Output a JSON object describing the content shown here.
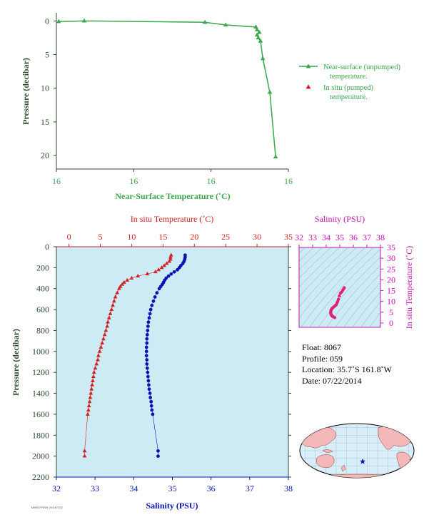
{
  "colors": {
    "green": "#3aa84b",
    "red": "#d42020",
    "blue": "#0a14b4",
    "magenta": "#cc10b4",
    "panel_bg": "#cdebf5",
    "ocean": "#d8eef8",
    "land": "#f4b8b8",
    "axis_dark": "#2e4a2e"
  },
  "chart_data": [
    {
      "type": "line",
      "name": "near-surface",
      "xlabel": "Near-Surface Temperature (˚C)",
      "ylabel": "Pressure (decibar)",
      "x_tick_labels": [
        "16",
        "16",
        "16",
        "16"
      ],
      "y_ticks": [
        0,
        5,
        10,
        15,
        20
      ],
      "x_domain": [
        0,
        1
      ],
      "ylim": [
        -1.2,
        22
      ],
      "y_inverted": true,
      "legend": [
        {
          "label_lines": [
            "Near-surface (unpumped)",
            "temperature."
          ],
          "color": "#3aa84b",
          "marker": "line-triangle"
        },
        {
          "label_lines": [
            "In situ (pumped)",
            "temperature."
          ],
          "color": "#d42020",
          "marker": "triangle"
        }
      ],
      "series": [
        {
          "color": "#3aa84b",
          "points": [
            {
              "t": 0.01,
              "p": 0.1
            },
            {
              "t": 0.12,
              "p": 0.0
            },
            {
              "t": 0.64,
              "p": 0.2
            },
            {
              "t": 0.73,
              "p": 0.6
            },
            {
              "t": 0.86,
              "p": 0.9
            },
            {
              "t": 0.865,
              "p": 1.3
            },
            {
              "t": 0.875,
              "p": 1.7
            },
            {
              "t": 0.865,
              "p": 2.1
            },
            {
              "t": 0.87,
              "p": 2.5
            },
            {
              "t": 0.88,
              "p": 3.0
            },
            {
              "t": 0.89,
              "p": 5.6
            },
            {
              "t": 0.92,
              "p": 10.6
            },
            {
              "t": 0.945,
              "p": 20.2
            }
          ]
        }
      ]
    },
    {
      "type": "scatter",
      "name": "profile",
      "ylabel": "Pressure (decibar)",
      "top_xlabel": "In situ Temperature (˚C)",
      "bottom_xlabel": "Salinity (PSU)",
      "temperature_range": [
        -2,
        35
      ],
      "temperature_ticks": [
        0,
        5,
        10,
        15,
        20,
        25,
        30,
        35
      ],
      "salinity_range": [
        32,
        38
      ],
      "salinity_ticks": [
        32,
        33,
        34,
        35,
        36,
        37,
        38
      ],
      "pressure_range": [
        0,
        2200
      ],
      "pressure_ticks": [
        0,
        200,
        400,
        600,
        800,
        1000,
        1200,
        1400,
        1600,
        1800,
        2000,
        2200
      ],
      "y_inverted": true,
      "series": [
        {
          "name": "temperature",
          "color": "#d42020",
          "marker": "triangle",
          "points": [
            {
              "x": 16.3,
              "p": 80
            },
            {
              "x": 16.2,
              "p": 100
            },
            {
              "x": 16.2,
              "p": 120
            },
            {
              "x": 16.0,
              "p": 140
            },
            {
              "x": 15.6,
              "p": 160
            },
            {
              "x": 15.2,
              "p": 180
            },
            {
              "x": 14.8,
              "p": 200
            },
            {
              "x": 14.3,
              "p": 220
            },
            {
              "x": 13.8,
              "p": 240
            },
            {
              "x": 12.5,
              "p": 260
            },
            {
              "x": 11.0,
              "p": 280
            },
            {
              "x": 10.0,
              "p": 300
            },
            {
              "x": 9.3,
              "p": 320
            },
            {
              "x": 8.8,
              "p": 340
            },
            {
              "x": 8.5,
              "p": 360
            },
            {
              "x": 8.2,
              "p": 380
            },
            {
              "x": 8.0,
              "p": 400
            },
            {
              "x": 7.7,
              "p": 440
            },
            {
              "x": 7.4,
              "p": 480
            },
            {
              "x": 7.2,
              "p": 520
            },
            {
              "x": 7.0,
              "p": 560
            },
            {
              "x": 6.8,
              "p": 600
            },
            {
              "x": 6.6,
              "p": 640
            },
            {
              "x": 6.4,
              "p": 680
            },
            {
              "x": 6.2,
              "p": 720
            },
            {
              "x": 6.1,
              "p": 760
            },
            {
              "x": 5.9,
              "p": 800
            },
            {
              "x": 5.7,
              "p": 840
            },
            {
              "x": 5.5,
              "p": 880
            },
            {
              "x": 5.3,
              "p": 920
            },
            {
              "x": 5.1,
              "p": 960
            },
            {
              "x": 4.9,
              "p": 1000
            },
            {
              "x": 4.7,
              "p": 1040
            },
            {
              "x": 4.6,
              "p": 1080
            },
            {
              "x": 4.4,
              "p": 1120
            },
            {
              "x": 4.2,
              "p": 1160
            },
            {
              "x": 4.0,
              "p": 1200
            },
            {
              "x": 3.9,
              "p": 1240
            },
            {
              "x": 3.8,
              "p": 1280
            },
            {
              "x": 3.7,
              "p": 1320
            },
            {
              "x": 3.6,
              "p": 1360
            },
            {
              "x": 3.5,
              "p": 1400
            },
            {
              "x": 3.4,
              "p": 1440
            },
            {
              "x": 3.3,
              "p": 1480
            },
            {
              "x": 3.2,
              "p": 1520
            },
            {
              "x": 3.1,
              "p": 1560
            },
            {
              "x": 3.0,
              "p": 1600
            },
            {
              "x": 2.5,
              "p": 1950
            },
            {
              "x": 2.5,
              "p": 2000
            }
          ]
        },
        {
          "name": "salinity",
          "color": "#0a14b4",
          "marker": "dot",
          "points": [
            {
              "x": 35.33,
              "p": 80
            },
            {
              "x": 35.33,
              "p": 100
            },
            {
              "x": 35.32,
              "p": 120
            },
            {
              "x": 35.3,
              "p": 140
            },
            {
              "x": 35.27,
              "p": 160
            },
            {
              "x": 35.22,
              "p": 180
            },
            {
              "x": 35.18,
              "p": 200
            },
            {
              "x": 35.13,
              "p": 220
            },
            {
              "x": 35.05,
              "p": 240
            },
            {
              "x": 34.97,
              "p": 260
            },
            {
              "x": 34.9,
              "p": 280
            },
            {
              "x": 34.84,
              "p": 300
            },
            {
              "x": 34.8,
              "p": 320
            },
            {
              "x": 34.77,
              "p": 340
            },
            {
              "x": 34.74,
              "p": 360
            },
            {
              "x": 34.7,
              "p": 380
            },
            {
              "x": 34.66,
              "p": 400
            },
            {
              "x": 34.6,
              "p": 440
            },
            {
              "x": 34.55,
              "p": 480
            },
            {
              "x": 34.51,
              "p": 520
            },
            {
              "x": 34.47,
              "p": 560
            },
            {
              "x": 34.44,
              "p": 600
            },
            {
              "x": 34.42,
              "p": 640
            },
            {
              "x": 34.4,
              "p": 680
            },
            {
              "x": 34.38,
              "p": 720
            },
            {
              "x": 34.37,
              "p": 760
            },
            {
              "x": 34.36,
              "p": 800
            },
            {
              "x": 34.35,
              "p": 840
            },
            {
              "x": 34.34,
              "p": 880
            },
            {
              "x": 34.34,
              "p": 920
            },
            {
              "x": 34.33,
              "p": 960
            },
            {
              "x": 34.33,
              "p": 1000
            },
            {
              "x": 34.33,
              "p": 1040
            },
            {
              "x": 34.34,
              "p": 1080
            },
            {
              "x": 34.34,
              "p": 1120
            },
            {
              "x": 34.35,
              "p": 1160
            },
            {
              "x": 34.36,
              "p": 1200
            },
            {
              "x": 34.37,
              "p": 1240
            },
            {
              "x": 34.38,
              "p": 1280
            },
            {
              "x": 34.39,
              "p": 1320
            },
            {
              "x": 34.4,
              "p": 1360
            },
            {
              "x": 34.42,
              "p": 1400
            },
            {
              "x": 34.43,
              "p": 1440
            },
            {
              "x": 34.45,
              "p": 1480
            },
            {
              "x": 34.46,
              "p": 1520
            },
            {
              "x": 34.47,
              "p": 1560
            },
            {
              "x": 34.49,
              "p": 1600
            },
            {
              "x": 34.63,
              "p": 1950
            },
            {
              "x": 34.63,
              "p": 2000
            }
          ]
        }
      ]
    },
    {
      "type": "scatter",
      "name": "ts-diagram",
      "top_xlabel": "Salinity (PSU)",
      "right_ylabel": "In situ Temperature (˚C)",
      "salinity_range": [
        32,
        38
      ],
      "salinity_ticks": [
        32,
        33,
        34,
        35,
        36,
        37,
        38
      ],
      "temperature_range": [
        -2,
        35
      ],
      "temperature_ticks": [
        0,
        5,
        10,
        15,
        20,
        25,
        30,
        35
      ],
      "series": [
        {
          "name": "ts-points",
          "color": "#e0207a",
          "marker": "dot",
          "points": [
            {
              "s": 35.33,
              "t": 16.3
            },
            {
              "s": 35.3,
              "t": 16.0
            },
            {
              "s": 35.22,
              "t": 15.2
            },
            {
              "s": 35.13,
              "t": 14.3
            },
            {
              "s": 35.05,
              "t": 13.8
            },
            {
              "s": 34.97,
              "t": 12.5
            },
            {
              "s": 34.9,
              "t": 11.0
            },
            {
              "s": 34.84,
              "t": 10.0
            },
            {
              "s": 34.8,
              "t": 9.3
            },
            {
              "s": 34.74,
              "t": 8.5
            },
            {
              "s": 34.66,
              "t": 8.0
            },
            {
              "s": 34.6,
              "t": 7.7
            },
            {
              "s": 34.51,
              "t": 7.2
            },
            {
              "s": 34.44,
              "t": 6.8
            },
            {
              "s": 34.4,
              "t": 6.4
            },
            {
              "s": 34.37,
              "t": 6.1
            },
            {
              "s": 34.35,
              "t": 5.7
            },
            {
              "s": 34.34,
              "t": 5.3
            },
            {
              "s": 34.33,
              "t": 4.9
            },
            {
              "s": 34.34,
              "t": 4.4
            },
            {
              "s": 34.36,
              "t": 4.0
            },
            {
              "s": 34.38,
              "t": 3.7
            },
            {
              "s": 34.4,
              "t": 3.5
            },
            {
              "s": 34.43,
              "t": 3.3
            },
            {
              "s": 34.46,
              "t": 3.1
            },
            {
              "s": 34.49,
              "t": 3.0
            },
            {
              "s": 34.63,
              "t": 2.5
            }
          ]
        }
      ]
    }
  ],
  "info": {
    "float": "Float:  8067",
    "profile": "Profile:  059",
    "location": "Location:  35.7˚S  161.8˚W",
    "date": "Date:  07/22/2014"
  },
  "map": {
    "marker": "star-icon",
    "float_position": {
      "lat": -35.7,
      "lon": -161.8
    }
  },
  "footer_code": "M8067P059 20140722"
}
